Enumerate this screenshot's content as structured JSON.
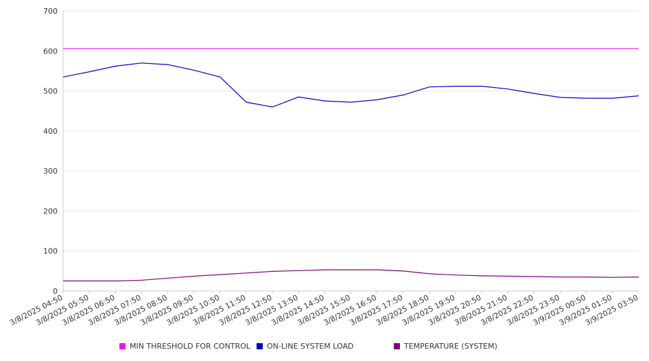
{
  "chart_data": {
    "type": "line",
    "title": "",
    "xlabel": "",
    "ylabel": "",
    "ylim": [
      0,
      700
    ],
    "yticks": [
      "0",
      "100",
      "200",
      "300",
      "400",
      "500",
      "600",
      "700"
    ],
    "x": [
      "3/8/2025 04:50",
      "3/8/2025 05:50",
      "3/8/2025 06:50",
      "3/8/2025 07:50",
      "3/8/2025 08:50",
      "3/8/2025 09:50",
      "3/8/2025 10:50",
      "3/8/2025 11:50",
      "3/8/2025 12:50",
      "3/8/2025 13:50",
      "3/8/2025 14:50",
      "3/8/2025 15:50",
      "3/8/2025 16:50",
      "3/8/2025 17:50",
      "3/8/2025 18:50",
      "3/8/2025 19:50",
      "3/8/2025 20:50",
      "3/8/2025 21:50",
      "3/8/2025 22:50",
      "3/8/2025 23:50",
      "3/9/2025 00:50",
      "3/9/2025 01:50",
      "3/9/2025 03:50"
    ],
    "grid": true,
    "legend_position": "bottom",
    "series": [
      {
        "name": "MIN THRESHOLD FOR CONTROL",
        "color": "#e020e0",
        "values": [
          606,
          606,
          606,
          606,
          606,
          606,
          606,
          606,
          606,
          606,
          606,
          606,
          606,
          606,
          606,
          606,
          606,
          606,
          606,
          606,
          606,
          606,
          606
        ]
      },
      {
        "name": "ON-LINE SYSTEM LOAD",
        "color": "#0000cc",
        "values": [
          535,
          548,
          562,
          570,
          566,
          552,
          535,
          472,
          460,
          485,
          475,
          472,
          478,
          490,
          510,
          512,
          512,
          505,
          494,
          484,
          482,
          482,
          488
        ]
      },
      {
        "name": "TEMPERATURE (SYSTEM)",
        "color": "#800080",
        "values": [
          25,
          25,
          25,
          27,
          32,
          37,
          41,
          45,
          49,
          51,
          53,
          53,
          53,
          50,
          43,
          40,
          38,
          37,
          36,
          35,
          35,
          34,
          35
        ]
      }
    ]
  }
}
